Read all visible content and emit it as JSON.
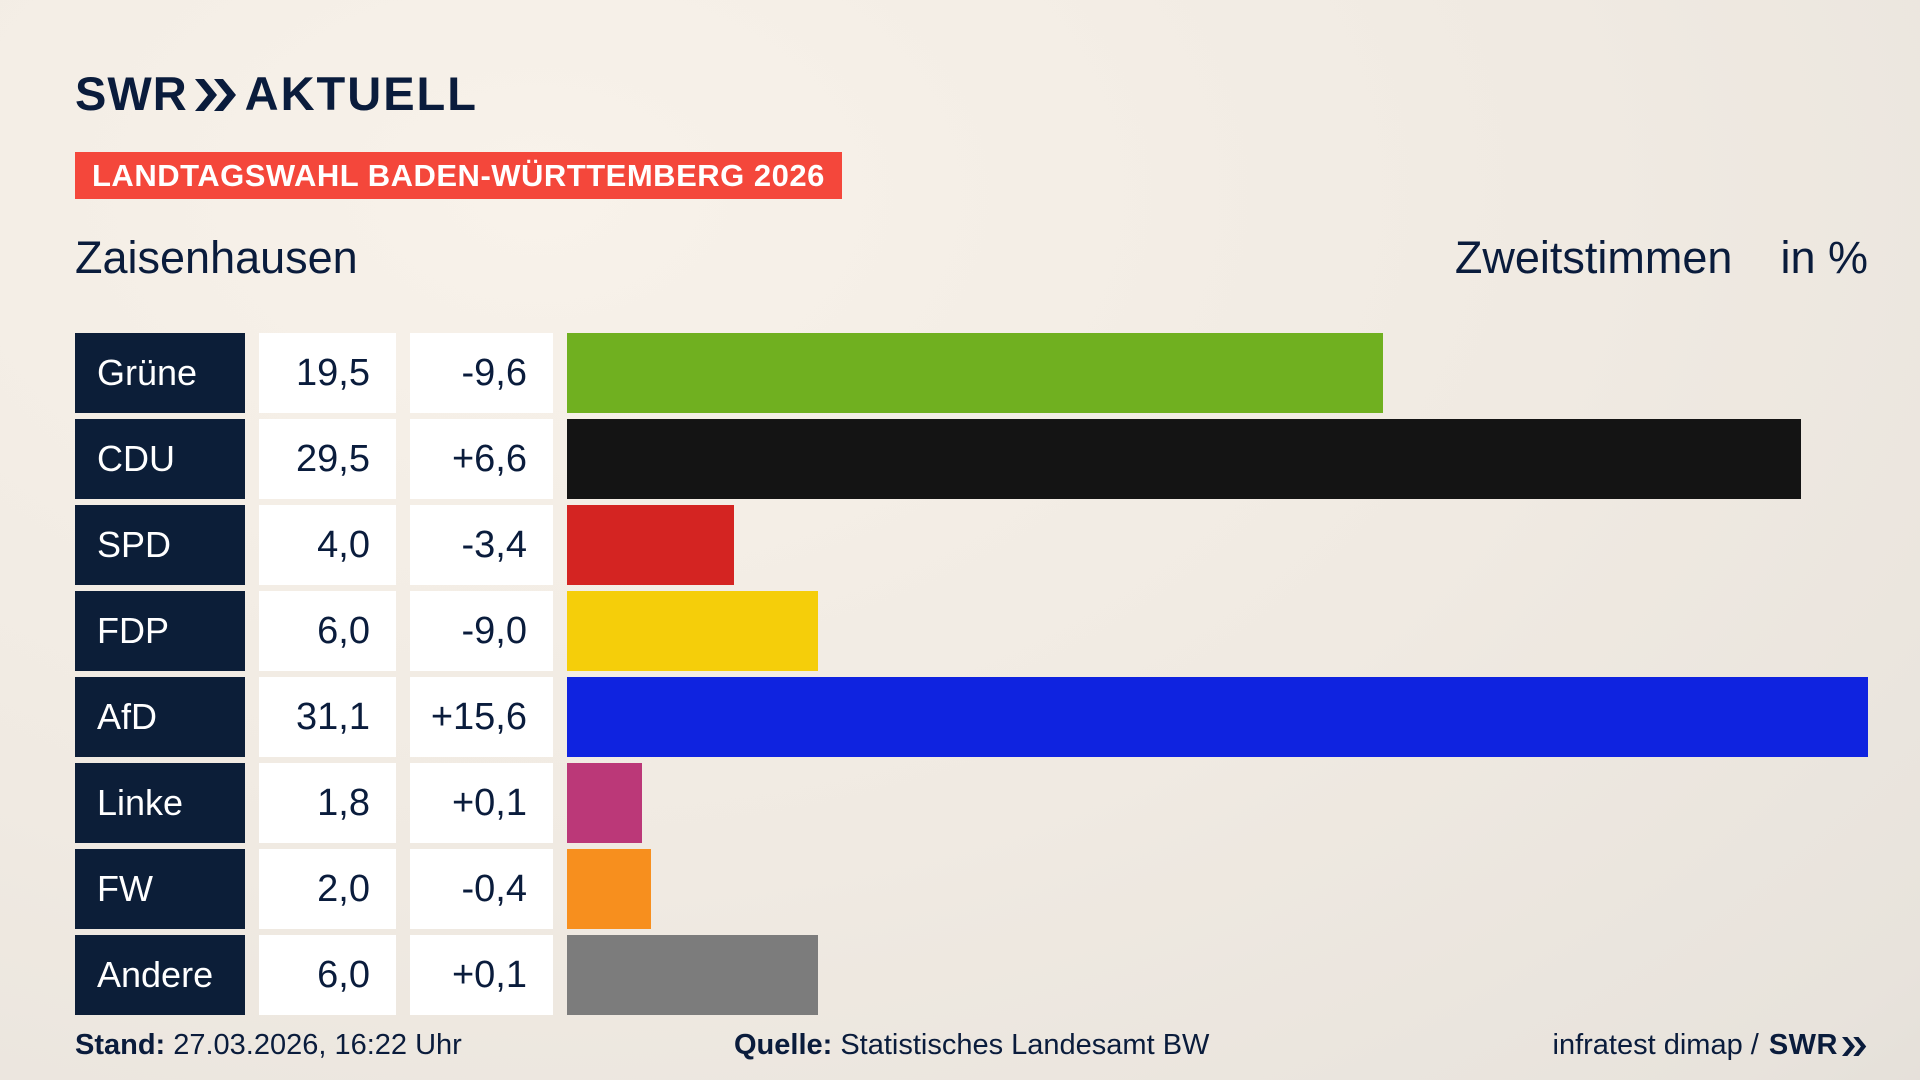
{
  "brand": {
    "name": "SWR",
    "suffix": "AKTUELL",
    "chevrons_icon": "double-chevron-right"
  },
  "header": {
    "badge_label": "LANDTAGSWAHL BADEN-WÜRTTEMBERG 2026",
    "location_title": "Zaisenhausen",
    "measure_title": "Zweitstimmen",
    "unit_label": "in %"
  },
  "chart_data": {
    "type": "bar",
    "orientation": "horizontal",
    "title": "Zaisenhausen – Zweitstimmen in %",
    "categories": [
      "Grüne",
      "CDU",
      "SPD",
      "FDP",
      "AfD",
      "Linke",
      "FW",
      "Andere"
    ],
    "values": [
      19.5,
      29.5,
      4.0,
      6.0,
      31.1,
      1.8,
      2.0,
      6.0
    ],
    "value_labels": [
      "19,5",
      "29,5",
      "4,0",
      "6,0",
      "31,1",
      "1,8",
      "2,0",
      "6,0"
    ],
    "change_labels": [
      "-9,6",
      "+6,6",
      "-3,4",
      "-9,0",
      "+15,6",
      "+0,1",
      "-0,4",
      "+0,1"
    ],
    "bar_colors": [
      "#70b020",
      "#141414",
      "#d42422",
      "#f5ce0a",
      "#0f23e0",
      "#bb3878",
      "#f78f1e",
      "#7c7c7c"
    ],
    "xlim": [
      0,
      31.1
    ],
    "grid": false,
    "legend": false
  },
  "footer": {
    "stand_label": "Stand:",
    "stand_value": "27.03.2026, 16:22 Uhr",
    "source_label": "Quelle:",
    "source_value": "Statistisches Landesamt BW",
    "credit_text": "infratest dimap /",
    "credit_brand": "SWR"
  },
  "colors": {
    "brand_navy": "#0a1c3c",
    "badge_red": "#f4473b",
    "label_box_navy": "#0c1e38",
    "value_box_white": "#ffffff",
    "background_beige": "#f0eae2"
  }
}
